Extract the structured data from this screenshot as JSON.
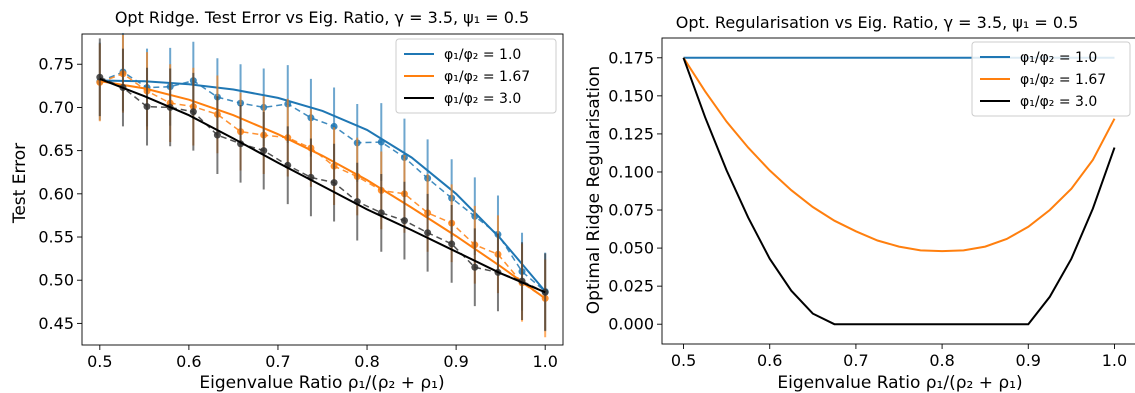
{
  "chart_data": [
    {
      "type": "line",
      "title": "Opt Ridge. Test Error vs Eig. Ratio, γ = 3.5, ψ₁ = 0.5",
      "xlabel": "Eigenvalue Ratio ρ₁/(ρ₂ + ρ₁)",
      "ylabel": "Test Error",
      "xlim": [
        0.48,
        1.02
      ],
      "ylim": [
        0.425,
        0.785
      ],
      "xticks": [
        0.5,
        0.6,
        0.7,
        0.8,
        0.9,
        1.0
      ],
      "xtick_labels": [
        "0.5",
        "0.6",
        "0.7",
        "0.8",
        "0.9",
        "1.0"
      ],
      "yticks": [
        0.45,
        0.5,
        0.55,
        0.6,
        0.65,
        0.7,
        0.75
      ],
      "ytick_labels": [
        "0.45",
        "0.50",
        "0.55",
        "0.60",
        "0.65",
        "0.70",
        "0.75"
      ],
      "legend_position": "top-right",
      "grid": false,
      "x_theory": [
        0.5,
        0.55,
        0.6,
        0.65,
        0.7,
        0.75,
        0.8,
        0.85,
        0.9,
        0.95,
        1.0
      ],
      "x_empirical": [
        0.5,
        0.526,
        0.553,
        0.579,
        0.605,
        0.632,
        0.658,
        0.684,
        0.711,
        0.737,
        0.763,
        0.789,
        0.816,
        0.842,
        0.868,
        0.895,
        0.921,
        0.947,
        0.974,
        1.0
      ],
      "series": [
        {
          "name": "φ₁/φ₂ = 1.0",
          "color": "#1f77b4",
          "theory": [
            0.7312,
            0.7302,
            0.7268,
            0.7208,
            0.711,
            0.696,
            0.674,
            0.642,
            0.6,
            0.548,
            0.487
          ],
          "empirical": [
            0.73,
            0.741,
            0.723,
            0.724,
            0.731,
            0.712,
            0.705,
            0.7,
            0.704,
            0.688,
            0.678,
            0.659,
            0.66,
            0.642,
            0.618,
            0.595,
            0.574,
            0.553,
            0.51,
            0.487
          ],
          "error": [
            0.045,
            0.045,
            0.045,
            0.045,
            0.045,
            0.045,
            0.045,
            0.045,
            0.045,
            0.045,
            0.045,
            0.045,
            0.045,
            0.045,
            0.045,
            0.045,
            0.045,
            0.045,
            0.045,
            0.045
          ]
        },
        {
          "name": "φ₁/φ₂ = 1.67",
          "color": "#ff7f0e",
          "theory": [
            0.7305,
            0.722,
            0.709,
            0.691,
            0.669,
            0.644,
            0.616,
            0.584,
            0.551,
            0.516,
            0.479
          ],
          "empirical": [
            0.729,
            0.739,
            0.719,
            0.705,
            0.701,
            0.692,
            0.672,
            0.668,
            0.665,
            0.653,
            0.632,
            0.62,
            0.604,
            0.6,
            0.578,
            0.566,
            0.541,
            0.53,
            0.497,
            0.479
          ],
          "error": [
            0.045,
            0.045,
            0.045,
            0.045,
            0.045,
            0.045,
            0.045,
            0.045,
            0.045,
            0.045,
            0.045,
            0.045,
            0.045,
            0.045,
            0.045,
            0.045,
            0.045,
            0.045,
            0.045,
            0.045
          ]
        },
        {
          "name": "φ₁/φ₂ = 3.0",
          "color": "#000000",
          "theory": [
            0.733,
            0.713,
            0.691,
            0.664,
            0.636,
            0.609,
            0.582,
            0.558,
            0.533,
            0.508,
            0.486
          ],
          "empirical": [
            0.735,
            0.723,
            0.701,
            0.7,
            0.695,
            0.668,
            0.658,
            0.65,
            0.633,
            0.619,
            0.613,
            0.591,
            0.578,
            0.569,
            0.555,
            0.542,
            0.515,
            0.509,
            0.499,
            0.486
          ],
          "error": [
            0.045,
            0.045,
            0.045,
            0.045,
            0.045,
            0.045,
            0.045,
            0.045,
            0.045,
            0.045,
            0.045,
            0.045,
            0.045,
            0.045,
            0.045,
            0.045,
            0.045,
            0.045,
            0.045,
            0.045
          ]
        }
      ]
    },
    {
      "type": "line",
      "title": "Opt. Regularisation vs Eig. Ratio, γ = 3.5, ψ₁ = 0.5",
      "xlabel": "Eigenvalue Ratio ρ₁/(ρ₂ + ρ₁)",
      "ylabel": "Optimal Ridge Regularisation",
      "xlim": [
        0.475,
        1.025
      ],
      "ylim": [
        -0.013,
        0.188
      ],
      "xticks": [
        0.5,
        0.6,
        0.7,
        0.8,
        0.9,
        1.0
      ],
      "xtick_labels": [
        "0.5",
        "0.6",
        "0.7",
        "0.8",
        "0.9",
        "1.0"
      ],
      "yticks": [
        0.0,
        0.025,
        0.05,
        0.075,
        0.1,
        0.125,
        0.15,
        0.175
      ],
      "ytick_labels": [
        "0.000",
        "0.025",
        "0.050",
        "0.075",
        "0.100",
        "0.125",
        "0.150",
        "0.175"
      ],
      "legend_position": "top-right",
      "grid": false,
      "x": [
        0.5,
        0.525,
        0.55,
        0.575,
        0.6,
        0.625,
        0.65,
        0.675,
        0.7,
        0.725,
        0.75,
        0.775,
        0.8,
        0.825,
        0.85,
        0.875,
        0.9,
        0.925,
        0.95,
        0.975,
        1.0
      ],
      "series": [
        {
          "name": "φ₁/φ₂ = 1.0",
          "color": "#1f77b4",
          "values": [
            0.175,
            0.175,
            0.175,
            0.175,
            0.175,
            0.175,
            0.175,
            0.175,
            0.175,
            0.175,
            0.175,
            0.175,
            0.175,
            0.175,
            0.175,
            0.175,
            0.175,
            0.175,
            0.175,
            0.175,
            0.175
          ]
        },
        {
          "name": "φ₁/φ₂ = 1.67",
          "color": "#ff7f0e",
          "values": [
            0.175,
            0.153,
            0.133,
            0.116,
            0.101,
            0.088,
            0.077,
            0.068,
            0.061,
            0.055,
            0.051,
            0.0485,
            0.048,
            0.0485,
            0.051,
            0.056,
            0.064,
            0.075,
            0.089,
            0.108,
            0.135
          ]
        },
        {
          "name": "φ₁/φ₂ = 3.0",
          "color": "#000000",
          "values": [
            0.175,
            0.136,
            0.101,
            0.07,
            0.043,
            0.022,
            0.007,
            0.0,
            0.0,
            0.0,
            0.0,
            0.0,
            0.0,
            0.0,
            0.0,
            0.0,
            0.0,
            0.018,
            0.043,
            0.076,
            0.116
          ]
        }
      ]
    }
  ]
}
